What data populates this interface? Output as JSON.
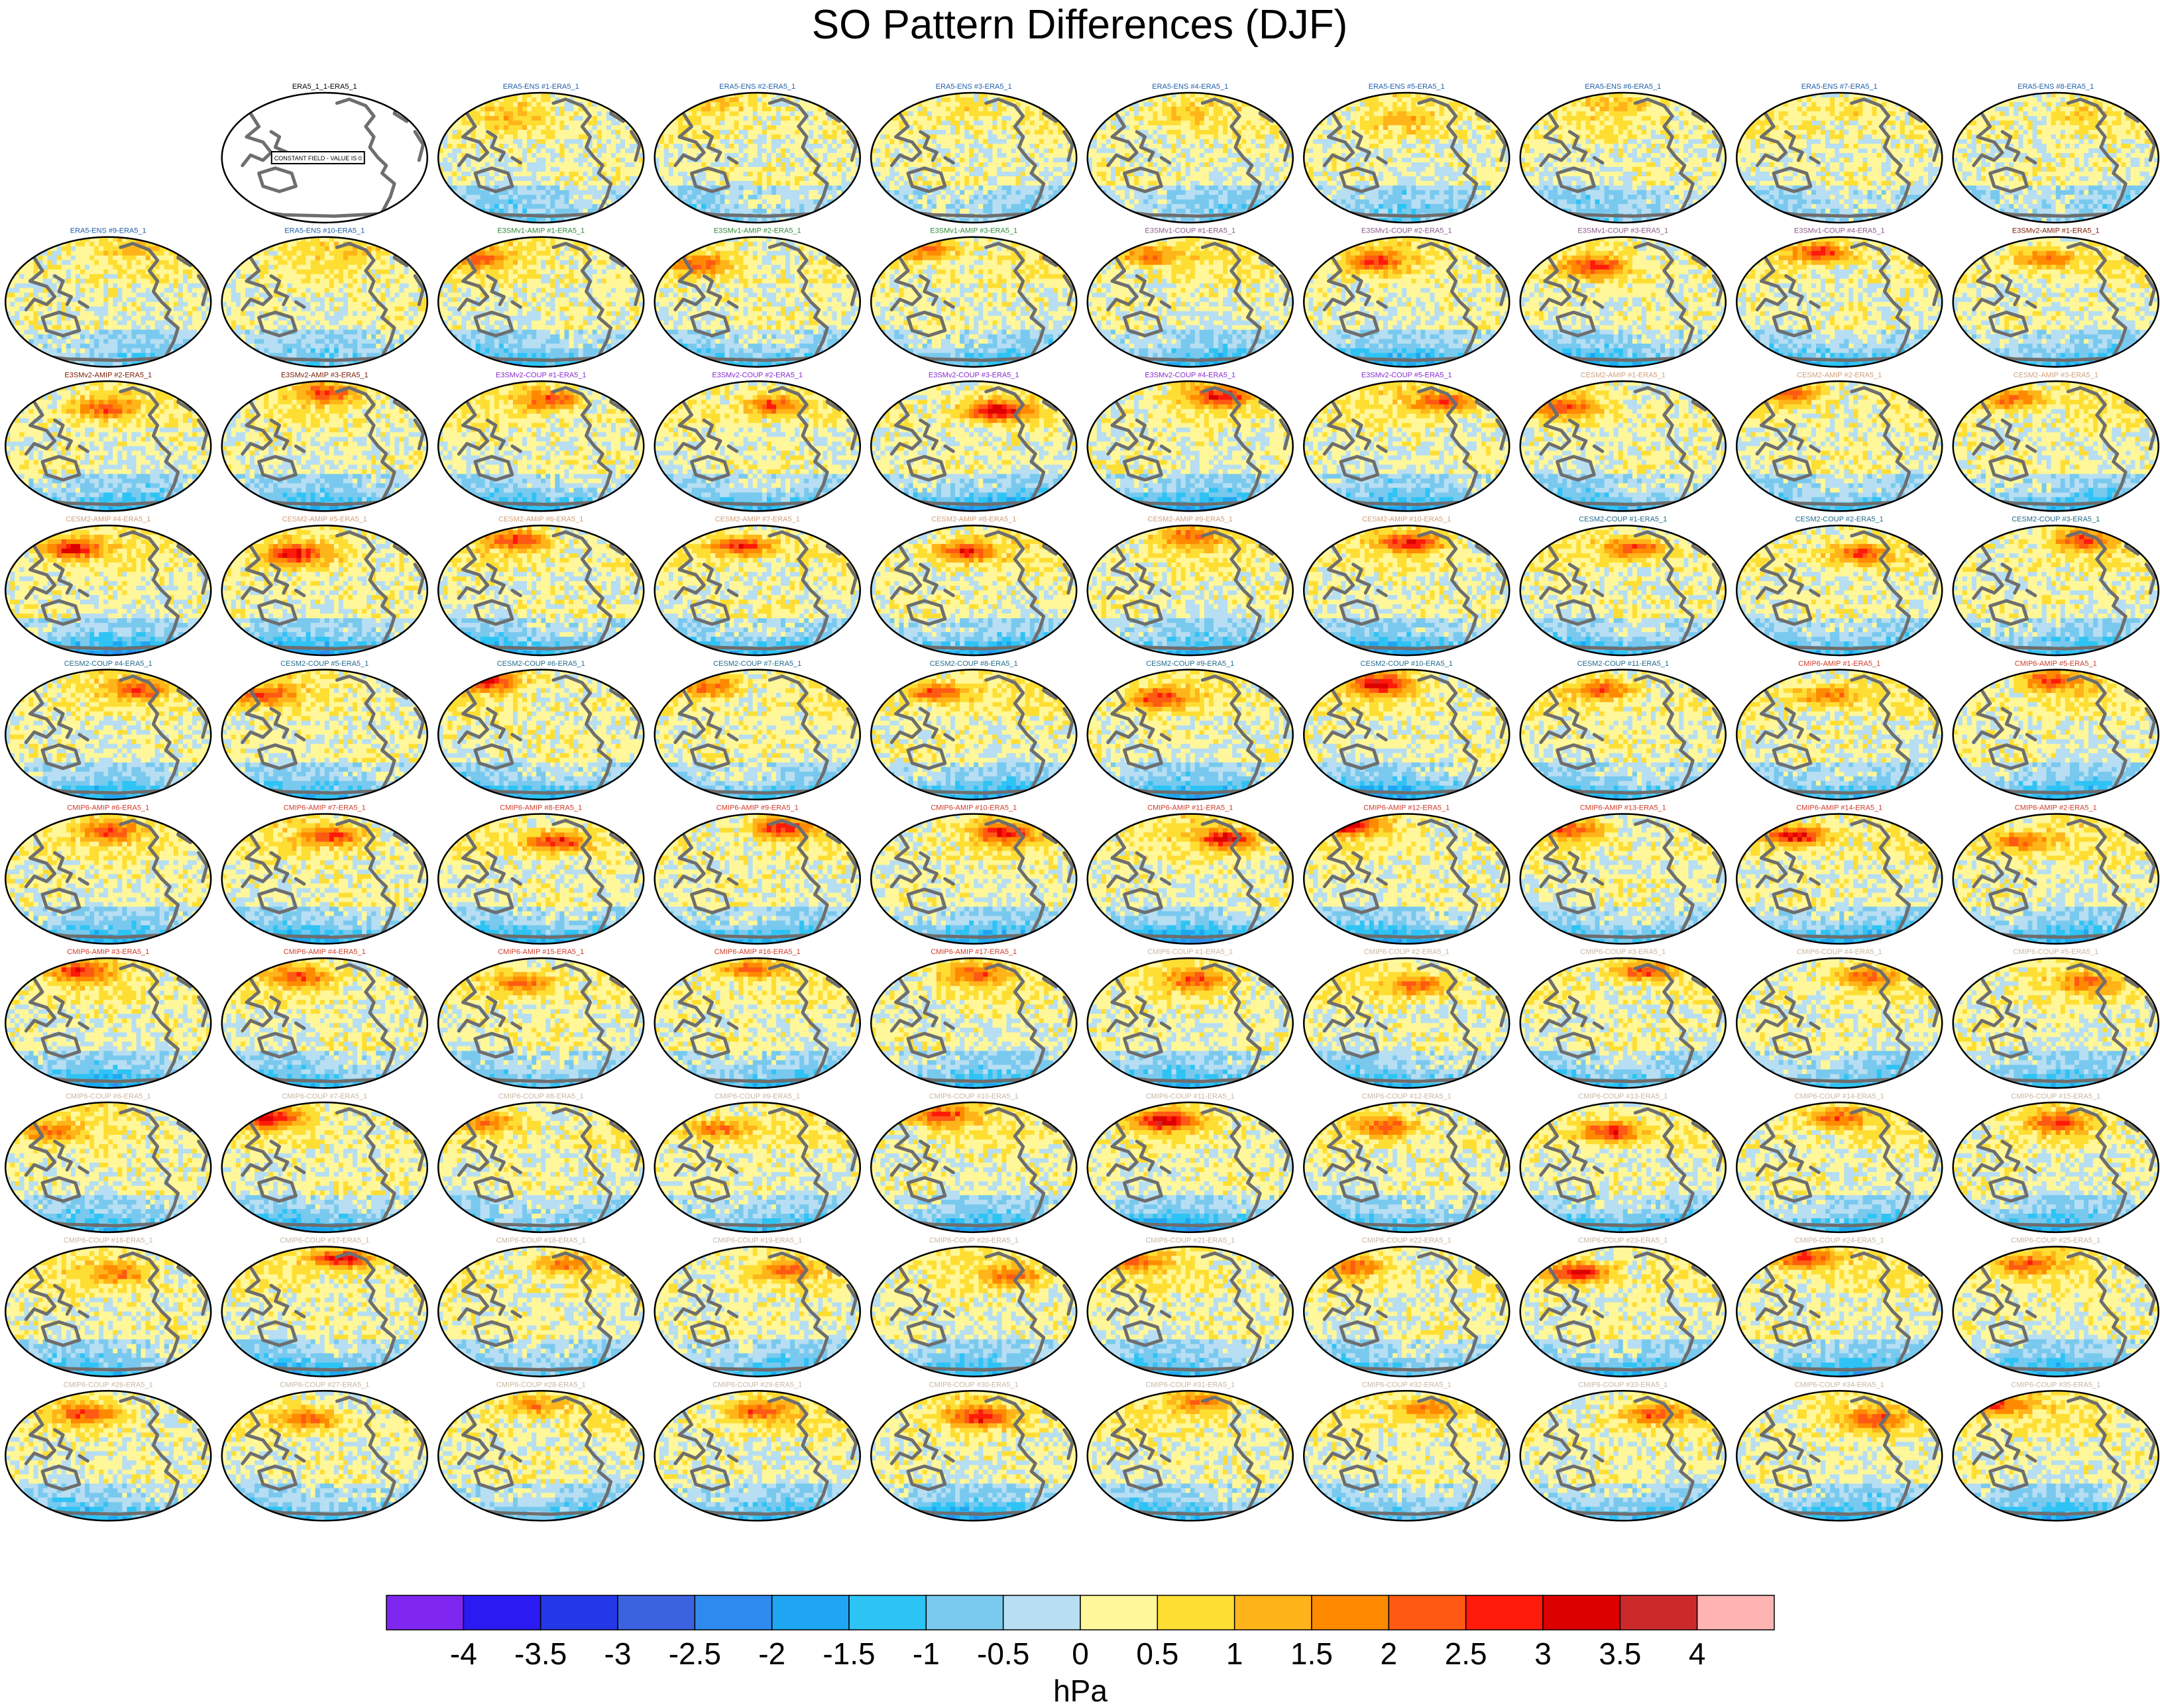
{
  "chart_data": {
    "type": "heatmap",
    "title": "SO Pattern Differences (DJF)",
    "subtitle": "",
    "colorbar": {
      "unit": "hPa",
      "tick_labels": [
        "-4",
        "-3.5",
        "-3",
        "-2.5",
        "-2",
        "-1.5",
        "-1",
        "-0.5",
        "0",
        "0.5",
        "1",
        "1.5",
        "2",
        "2.5",
        "3",
        "3.5",
        "4"
      ],
      "boundaries": [
        -4,
        -3.5,
        -3,
        -2.5,
        -2,
        -1.5,
        -1,
        -0.5,
        0,
        0.5,
        1,
        1.5,
        2,
        2.5,
        3,
        3.5,
        4
      ],
      "colors": [
        "#7f26f0",
        "#2b1bf2",
        "#2438e8",
        "#3b63df",
        "#2f8aef",
        "#1ea6f2",
        "#2ec3f5",
        "#79c9ef",
        "#b7def2",
        "#fff799",
        "#ffde33",
        "#ffb41a",
        "#ff8a00",
        "#ff5a14",
        "#ff1a0a",
        "#dd0000",
        "#cc2a2a",
        "#ffb4b4"
      ]
    },
    "panels": [
      {
        "label": "ERA5_1_1-ERA5_1",
        "group": "ERA5",
        "constant": true,
        "note": "CONSTANT FIELD - VALUE IS 0"
      },
      {
        "label": "ERA5-ENS   #1-ERA5_1",
        "group": "ERA5-ENS",
        "intensity": 0.2
      },
      {
        "label": "ERA5-ENS   #2-ERA5_1",
        "group": "ERA5-ENS",
        "intensity": 0.2
      },
      {
        "label": "ERA5-ENS   #3-ERA5_1",
        "group": "ERA5-ENS",
        "intensity": 0.2
      },
      {
        "label": "ERA5-ENS   #4-ERA5_1",
        "group": "ERA5-ENS",
        "intensity": 0.2
      },
      {
        "label": "ERA5-ENS   #5-ERA5_1",
        "group": "ERA5-ENS",
        "intensity": 0.2
      },
      {
        "label": "ERA5-ENS   #6-ERA5_1",
        "group": "ERA5-ENS",
        "intensity": 0.2
      },
      {
        "label": "ERA5-ENS   #7-ERA5_1",
        "group": "ERA5-ENS",
        "intensity": 0.2
      },
      {
        "label": "ERA5-ENS   #8-ERA5_1",
        "group": "ERA5-ENS",
        "intensity": 0.2
      },
      {
        "label": "ERA5-ENS   #9-ERA5_1",
        "group": "ERA5-ENS",
        "intensity": 0.2
      },
      {
        "label": "ERA5-ENS   #10-ERA5_1",
        "group": "ERA5-ENS",
        "intensity": 0.2
      },
      {
        "label": "E3SMv1-AMIP #1-ERA5_1",
        "group": "E3SMv1-AMIP",
        "intensity": 0.55
      },
      {
        "label": "E3SMv1-AMIP #2-ERA5_1",
        "group": "E3SMv1-AMIP",
        "intensity": 0.55
      },
      {
        "label": "E3SMv1-AMIP #3-ERA5_1",
        "group": "E3SMv1-AMIP",
        "intensity": 0.6
      },
      {
        "label": "E3SMv1-COUP #1-ERA5_1",
        "group": "E3SMv1-COUP",
        "intensity": 0.6
      },
      {
        "label": "E3SMv1-COUP #2-ERA5_1",
        "group": "E3SMv1-COUP",
        "intensity": 0.7
      },
      {
        "label": "E3SMv1-COUP #3-ERA5_1",
        "group": "E3SMv1-COUP",
        "intensity": 0.7
      },
      {
        "label": "E3SMv1-COUP #4-ERA5_1",
        "group": "E3SMv1-COUP",
        "intensity": 0.8
      },
      {
        "label": "E3SMv2-AMIP #1-ERA5_1",
        "group": "E3SMv2-AMIP",
        "intensity": 0.6
      },
      {
        "label": "E3SMv2-AMIP #2-ERA5_1",
        "group": "E3SMv2-AMIP",
        "intensity": 0.6
      },
      {
        "label": "E3SMv2-AMIP #3-ERA5_1",
        "group": "E3SMv2-AMIP",
        "intensity": 0.6
      },
      {
        "label": "E3SMv2-COUP #1-ERA5_1",
        "group": "E3SMv2-COUP",
        "intensity": 0.7
      },
      {
        "label": "E3SMv2-COUP #2-ERA5_1",
        "group": "E3SMv2-COUP",
        "intensity": 0.7
      },
      {
        "label": "E3SMv2-COUP #3-ERA5_1",
        "group": "E3SMv2-COUP",
        "intensity": 0.95
      },
      {
        "label": "E3SMv2-COUP #4-ERA5_1",
        "group": "E3SMv2-COUP",
        "intensity": 0.8
      },
      {
        "label": "E3SMv2-COUP #5-ERA5_1",
        "group": "E3SMv2-COUP",
        "intensity": 0.7
      },
      {
        "label": "CESM2-AMIP #1-ERA5_1",
        "group": "CESM2-AMIP",
        "intensity": 0.6
      },
      {
        "label": "CESM2-AMIP #2-ERA5_1",
        "group": "CESM2-AMIP",
        "intensity": 0.6
      },
      {
        "label": "CESM2-AMIP #3-ERA5_1",
        "group": "CESM2-AMIP",
        "intensity": 0.6
      },
      {
        "label": "CESM2-AMIP #4-ERA5_1",
        "group": "CESM2-AMIP",
        "intensity": 0.85
      },
      {
        "label": "CESM2-AMIP #5-ERA5_1",
        "group": "CESM2-AMIP",
        "intensity": 0.8
      },
      {
        "label": "CESM2-AMIP #6-ERA5_1",
        "group": "CESM2-AMIP",
        "intensity": 0.7
      },
      {
        "label": "CESM2-AMIP #7-ERA5_1",
        "group": "CESM2-AMIP",
        "intensity": 0.8
      },
      {
        "label": "CESM2-AMIP #8-ERA5_1",
        "group": "CESM2-AMIP",
        "intensity": 0.8
      },
      {
        "label": "CESM2-AMIP #9-ERA5_1",
        "group": "CESM2-AMIP",
        "intensity": 0.5
      },
      {
        "label": "CESM2-AMIP #10-ERA5_1",
        "group": "CESM2-AMIP",
        "intensity": 0.8
      },
      {
        "label": "CESM2-COUP #1-ERA5_1",
        "group": "CESM2-COUP",
        "intensity": 0.7
      },
      {
        "label": "CESM2-COUP #2-ERA5_1",
        "group": "CESM2-COUP",
        "intensity": 0.7
      },
      {
        "label": "CESM2-COUP #3-ERA5_1",
        "group": "CESM2-COUP",
        "intensity": 0.6
      },
      {
        "label": "CESM2-COUP #4-ERA5_1",
        "group": "CESM2-COUP",
        "intensity": 0.6
      },
      {
        "label": "CESM2-COUP #5-ERA5_1",
        "group": "CESM2-COUP",
        "intensity": 0.6
      },
      {
        "label": "CESM2-COUP #6-ERA5_1",
        "group": "CESM2-COUP",
        "intensity": 0.8
      },
      {
        "label": "CESM2-COUP #7-ERA5_1",
        "group": "CESM2-COUP",
        "intensity": 0.6
      },
      {
        "label": "CESM2-COUP #8-ERA5_1",
        "group": "CESM2-COUP",
        "intensity": 0.7
      },
      {
        "label": "CESM2-COUP #9-ERA5_1",
        "group": "CESM2-COUP",
        "intensity": 0.7
      },
      {
        "label": "CESM2-COUP #10-ERA5_1",
        "group": "CESM2-COUP",
        "intensity": 0.9
      },
      {
        "label": "CESM2-COUP #11-ERA5_1",
        "group": "CESM2-COUP",
        "intensity": 0.6
      },
      {
        "label": "CMIP6-AMIP #1-ERA5_1",
        "group": "CMIP6-AMIP",
        "intensity": 0.6
      },
      {
        "label": "CMIP6-AMIP #5-ERA5_1",
        "group": "CMIP6-AMIP",
        "intensity": 0.7
      },
      {
        "label": "CMIP6-AMIP #6-ERA5_1",
        "group": "CMIP6-AMIP",
        "intensity": 0.6
      },
      {
        "label": "CMIP6-AMIP #7-ERA5_1",
        "group": "CMIP6-AMIP",
        "intensity": 0.7
      },
      {
        "label": "CMIP6-AMIP #8-ERA5_1",
        "group": "CMIP6-AMIP",
        "intensity": 0.85
      },
      {
        "label": "CMIP6-AMIP #9-ERA5_1",
        "group": "CMIP6-AMIP",
        "intensity": 0.8
      },
      {
        "label": "CMIP6-AMIP #10-ERA5_1",
        "group": "CMIP6-AMIP",
        "intensity": 0.8
      },
      {
        "label": "CMIP6-AMIP #11-ERA5_1",
        "group": "CMIP6-AMIP",
        "intensity": 0.9
      },
      {
        "label": "CMIP6-AMIP #12-ERA5_1",
        "group": "CMIP6-AMIP",
        "intensity": 0.9
      },
      {
        "label": "CMIP6-AMIP #13-ERA5_1",
        "group": "CMIP6-AMIP",
        "intensity": 0.6
      },
      {
        "label": "CMIP6-AMIP #14-ERA5_1",
        "group": "CMIP6-AMIP",
        "intensity": 0.9
      },
      {
        "label": "CMIP6-AMIP #2-ERA5_1",
        "group": "CMIP6-AMIP",
        "intensity": 0.6
      },
      {
        "label": "CMIP6-AMIP #3-ERA5_1",
        "group": "CMIP6-AMIP",
        "intensity": 0.7
      },
      {
        "label": "CMIP6-AMIP #4-ERA5_1",
        "group": "CMIP6-AMIP",
        "intensity": 0.6
      },
      {
        "label": "CMIP6-AMIP #15-ERA5_1",
        "group": "CMIP6-AMIP",
        "intensity": 0.6
      },
      {
        "label": "CMIP6-AMIP #16-ERA5_1",
        "group": "CMIP6-AMIP",
        "intensity": 0.6
      },
      {
        "label": "CMIP6-AMIP #17-ERA5_1",
        "group": "CMIP6-AMIP",
        "intensity": 0.6
      },
      {
        "label": "CMIP6-COUP #1-ERA5_1",
        "group": "CMIP6-COUP",
        "intensity": 0.6
      },
      {
        "label": "CMIP6-COUP #2-ERA5_1",
        "group": "CMIP6-COUP",
        "intensity": 0.6
      },
      {
        "label": "CMIP6-COUP #3-ERA5_1",
        "group": "CMIP6-COUP",
        "intensity": 0.7
      },
      {
        "label": "CMIP6-COUP #4-ERA5_1",
        "group": "CMIP6-COUP",
        "intensity": 0.5
      },
      {
        "label": "CMIP6-COUP #5-ERA5_1",
        "group": "CMIP6-COUP",
        "intensity": 0.5
      },
      {
        "label": "CMIP6-COUP #6-ERA5_1",
        "group": "CMIP6-COUP",
        "intensity": 0.5
      },
      {
        "label": "CMIP6-COUP #7-ERA5_1",
        "group": "CMIP6-COUP",
        "intensity": 0.8
      },
      {
        "label": "CMIP6-COUP #8-ERA5_1",
        "group": "CMIP6-COUP",
        "intensity": 0.5
      },
      {
        "label": "CMIP6-COUP #9-ERA5_1",
        "group": "CMIP6-COUP",
        "intensity": 0.6
      },
      {
        "label": "CMIP6-COUP #10-ERA5_1",
        "group": "CMIP6-COUP",
        "intensity": 0.7
      },
      {
        "label": "CMIP6-COUP #11-ERA5_1",
        "group": "CMIP6-COUP",
        "intensity": 0.9
      },
      {
        "label": "CMIP6-COUP #12-ERA5_1",
        "group": "CMIP6-COUP",
        "intensity": 0.6
      },
      {
        "label": "CMIP6-COUP #13-ERA5_1",
        "group": "CMIP6-COUP",
        "intensity": 0.85
      },
      {
        "label": "CMIP6-COUP #14-ERA5_1",
        "group": "CMIP6-COUP",
        "intensity": 0.6
      },
      {
        "label": "CMIP6-COUP #15-ERA5_1",
        "group": "CMIP6-COUP",
        "intensity": 0.6
      },
      {
        "label": "CMIP6-COUP #16-ERA5_1",
        "group": "CMIP6-COUP",
        "intensity": 0.5
      },
      {
        "label": "CMIP6-COUP #17-ERA5_1",
        "group": "CMIP6-COUP",
        "intensity": 0.9
      },
      {
        "label": "CMIP6-COUP #18-ERA5_1",
        "group": "CMIP6-COUP",
        "intensity": 0.5
      },
      {
        "label": "CMIP6-COUP #19-ERA5_1",
        "group": "CMIP6-COUP",
        "intensity": 0.5
      },
      {
        "label": "CMIP6-COUP #20-ERA5_1",
        "group": "CMIP6-COUP",
        "intensity": 0.5
      },
      {
        "label": "CMIP6-COUP #21-ERA5_1",
        "group": "CMIP6-COUP",
        "intensity": 0.5
      },
      {
        "label": "CMIP6-COUP #22-ERA5_1",
        "group": "CMIP6-COUP",
        "intensity": 0.5
      },
      {
        "label": "CMIP6-COUP #23-ERA5_1",
        "group": "CMIP6-COUP",
        "intensity": 0.9
      },
      {
        "label": "CMIP6-COUP #24-ERA5_1",
        "group": "CMIP6-COUP",
        "intensity": 0.8
      },
      {
        "label": "CMIP6-COUP #25-ERA5_1",
        "group": "CMIP6-COUP",
        "intensity": 0.6
      },
      {
        "label": "CMIP6-COUP #26-ERA5_1",
        "group": "CMIP6-COUP",
        "intensity": 0.6
      },
      {
        "label": "CMIP6-COUP #27-ERA5_1",
        "group": "CMIP6-COUP",
        "intensity": 0.6
      },
      {
        "label": "CMIP6-COUP #28-ERA5_1",
        "group": "CMIP6-COUP",
        "intensity": 0.5
      },
      {
        "label": "CMIP6-COUP #29-ERA5_1",
        "group": "CMIP6-COUP",
        "intensity": 0.6
      },
      {
        "label": "CMIP6-COUP #30-ERA5_1",
        "group": "CMIP6-COUP",
        "intensity": 0.8
      },
      {
        "label": "CMIP6-COUP #31-ERA5_1",
        "group": "CMIP6-COUP",
        "intensity": 0.5
      },
      {
        "label": "CMIP6-COUP #32-ERA5_1",
        "group": "CMIP6-COUP",
        "intensity": 0.6
      },
      {
        "label": "CMIP6-COUP #33-ERA5_1",
        "group": "CMIP6-COUP",
        "intensity": 0.6
      },
      {
        "label": "CMIP6-COUP #34-ERA5_1",
        "group": "CMIP6-COUP",
        "intensity": 0.6
      },
      {
        "label": "CMIP6-COUP #35-ERA5_1",
        "group": "CMIP6-COUP",
        "intensity": 0.7
      }
    ],
    "group_colors": {
      "ERA5": "#000000",
      "ERA5-ENS": "#1f5fa8",
      "E3SMv1-AMIP": "#2f8a3a",
      "E3SMv1-COUP": "#8a5a8a",
      "E3SMv2-AMIP": "#7a1a00",
      "E3SMv2-COUP": "#8a2ad0",
      "CESM2-AMIP": "#d2a07a",
      "CESM2-COUP": "#1f6a8a",
      "CMIP6-AMIP": "#d03a2a",
      "CMIP6-COUP": "#c8b6a0"
    }
  }
}
